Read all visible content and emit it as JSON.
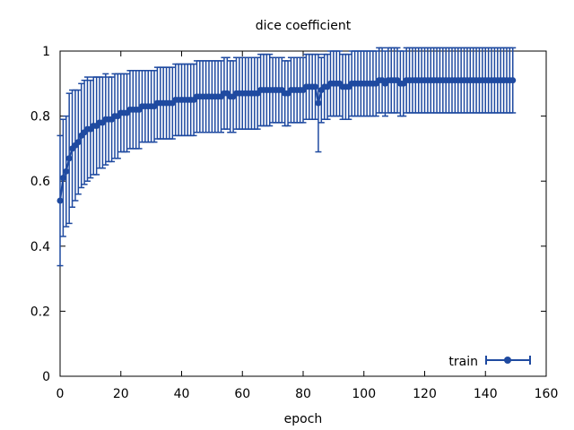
{
  "chart_data": {
    "type": "line",
    "title": "dice coefficient",
    "xlabel": "epoch",
    "ylabel": "",
    "xlim": [
      0,
      160
    ],
    "ylim": [
      0,
      1
    ],
    "xticks": [
      "0",
      "20",
      "40",
      "60",
      "80",
      "100",
      "120",
      "140",
      "160"
    ],
    "yticks": [
      "0",
      "0.2",
      "0.4",
      "0.6",
      "0.8",
      "1"
    ],
    "grid": false,
    "legend_position": "bottom-right",
    "colors": {
      "series": "#1f4aa0",
      "axis": "#000000"
    },
    "series": [
      {
        "name": "train",
        "marker": "circle",
        "error_bars": true,
        "x": [
          0,
          1,
          2,
          3,
          4,
          5,
          6,
          7,
          8,
          9,
          10,
          11,
          12,
          13,
          14,
          15,
          16,
          17,
          18,
          19,
          20,
          21,
          22,
          23,
          24,
          25,
          26,
          27,
          28,
          29,
          30,
          31,
          32,
          33,
          34,
          35,
          36,
          37,
          38,
          39,
          40,
          41,
          42,
          43,
          44,
          45,
          46,
          47,
          48,
          49,
          50,
          51,
          52,
          53,
          54,
          55,
          56,
          57,
          58,
          59,
          60,
          61,
          62,
          63,
          64,
          65,
          66,
          67,
          68,
          69,
          70,
          71,
          72,
          73,
          74,
          75,
          76,
          77,
          78,
          79,
          80,
          81,
          82,
          83,
          84,
          85,
          86,
          87,
          88,
          89,
          90,
          91,
          92,
          93,
          94,
          95,
          96,
          97,
          98,
          99,
          100,
          101,
          102,
          103,
          104,
          105,
          106,
          107,
          108,
          109,
          110,
          111,
          112,
          113,
          114,
          115,
          116,
          117,
          118,
          119,
          120,
          121,
          122,
          123,
          124,
          125,
          126,
          127,
          128,
          129,
          130,
          131,
          132,
          133,
          134,
          135,
          136,
          137,
          138,
          139,
          140,
          141,
          142,
          143,
          144,
          145,
          146,
          147,
          148,
          149
        ],
        "values": [
          0.54,
          0.61,
          0.63,
          0.67,
          0.7,
          0.71,
          0.72,
          0.74,
          0.75,
          0.76,
          0.76,
          0.77,
          0.77,
          0.78,
          0.78,
          0.79,
          0.79,
          0.79,
          0.8,
          0.8,
          0.81,
          0.81,
          0.81,
          0.82,
          0.82,
          0.82,
          0.82,
          0.83,
          0.83,
          0.83,
          0.83,
          0.83,
          0.84,
          0.84,
          0.84,
          0.84,
          0.84,
          0.84,
          0.85,
          0.85,
          0.85,
          0.85,
          0.85,
          0.85,
          0.85,
          0.86,
          0.86,
          0.86,
          0.86,
          0.86,
          0.86,
          0.86,
          0.86,
          0.86,
          0.87,
          0.87,
          0.86,
          0.86,
          0.87,
          0.87,
          0.87,
          0.87,
          0.87,
          0.87,
          0.87,
          0.87,
          0.88,
          0.88,
          0.88,
          0.88,
          0.88,
          0.88,
          0.88,
          0.88,
          0.87,
          0.87,
          0.88,
          0.88,
          0.88,
          0.88,
          0.88,
          0.89,
          0.89,
          0.89,
          0.89,
          0.84,
          0.88,
          0.89,
          0.89,
          0.9,
          0.9,
          0.9,
          0.9,
          0.89,
          0.89,
          0.89,
          0.9,
          0.9,
          0.9,
          0.9,
          0.9,
          0.9,
          0.9,
          0.9,
          0.9,
          0.91,
          0.91,
          0.9,
          0.91,
          0.91,
          0.91,
          0.91,
          0.9,
          0.9,
          0.91,
          0.91,
          0.91,
          0.91,
          0.91,
          0.91,
          0.91,
          0.91,
          0.91,
          0.91,
          0.91,
          0.91,
          0.91,
          0.91,
          0.91,
          0.91,
          0.91,
          0.91,
          0.91,
          0.91,
          0.91,
          0.91,
          0.91,
          0.91,
          0.91,
          0.91,
          0.91,
          0.91,
          0.91,
          0.91,
          0.91,
          0.91,
          0.91,
          0.91,
          0.91,
          0.91
        ],
        "errors": [
          0.2,
          0.18,
          0.17,
          0.2,
          0.18,
          0.17,
          0.16,
          0.16,
          0.16,
          0.16,
          0.15,
          0.15,
          0.15,
          0.14,
          0.14,
          0.14,
          0.13,
          0.13,
          0.13,
          0.13,
          0.12,
          0.12,
          0.12,
          0.12,
          0.12,
          0.12,
          0.12,
          0.11,
          0.11,
          0.11,
          0.11,
          0.11,
          0.11,
          0.11,
          0.11,
          0.11,
          0.11,
          0.11,
          0.11,
          0.11,
          0.11,
          0.11,
          0.11,
          0.11,
          0.11,
          0.11,
          0.11,
          0.11,
          0.11,
          0.11,
          0.11,
          0.11,
          0.11,
          0.11,
          0.11,
          0.11,
          0.11,
          0.11,
          0.11,
          0.11,
          0.11,
          0.11,
          0.11,
          0.11,
          0.11,
          0.11,
          0.11,
          0.11,
          0.11,
          0.11,
          0.1,
          0.1,
          0.1,
          0.1,
          0.1,
          0.1,
          0.1,
          0.1,
          0.1,
          0.1,
          0.1,
          0.1,
          0.1,
          0.1,
          0.1,
          0.15,
          0.1,
          0.1,
          0.1,
          0.1,
          0.1,
          0.1,
          0.1,
          0.1,
          0.1,
          0.1,
          0.1,
          0.1,
          0.1,
          0.1,
          0.1,
          0.1,
          0.1,
          0.1,
          0.1,
          0.1,
          0.1,
          0.1,
          0.1,
          0.1,
          0.1,
          0.1,
          0.1,
          0.1,
          0.1,
          0.1,
          0.1,
          0.1,
          0.1,
          0.1,
          0.1,
          0.1,
          0.1,
          0.1,
          0.1,
          0.1,
          0.1,
          0.1,
          0.1,
          0.1,
          0.1,
          0.1,
          0.1,
          0.1,
          0.1,
          0.1,
          0.1,
          0.1,
          0.1,
          0.1,
          0.1,
          0.1,
          0.1,
          0.1,
          0.1,
          0.1,
          0.1,
          0.1,
          0.1,
          0.1
        ]
      }
    ]
  }
}
